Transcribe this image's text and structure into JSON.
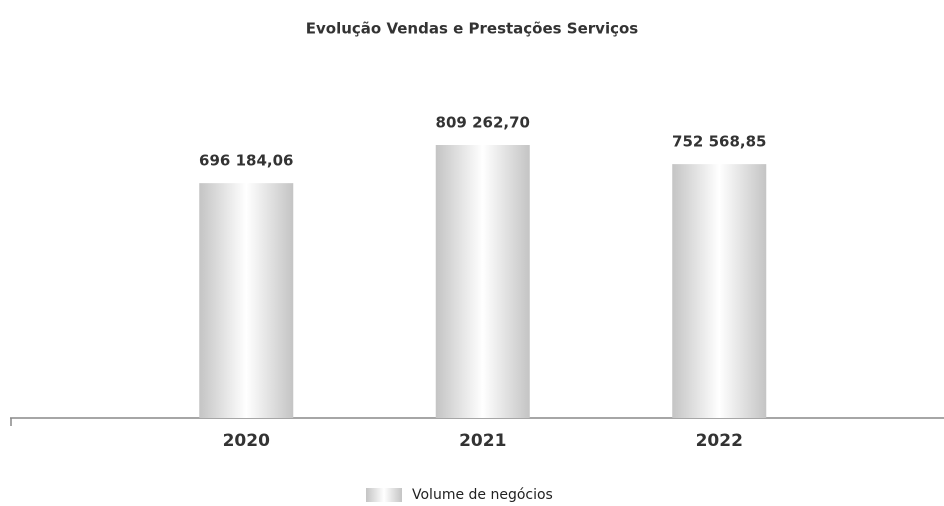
{
  "chart_data": {
    "type": "bar",
    "title": "Evolução Vendas e Prestações Serviços",
    "categories": [
      "2020",
      "2021",
      "2022"
    ],
    "series": [
      {
        "name": "Volume de negócios",
        "color": "#c4c4c4",
        "values": [
          696184.06,
          809262.7,
          752568.85
        ],
        "value_labels": [
          "696 184,06",
          "809 262,70",
          "752 568,85"
        ]
      }
    ]
  }
}
